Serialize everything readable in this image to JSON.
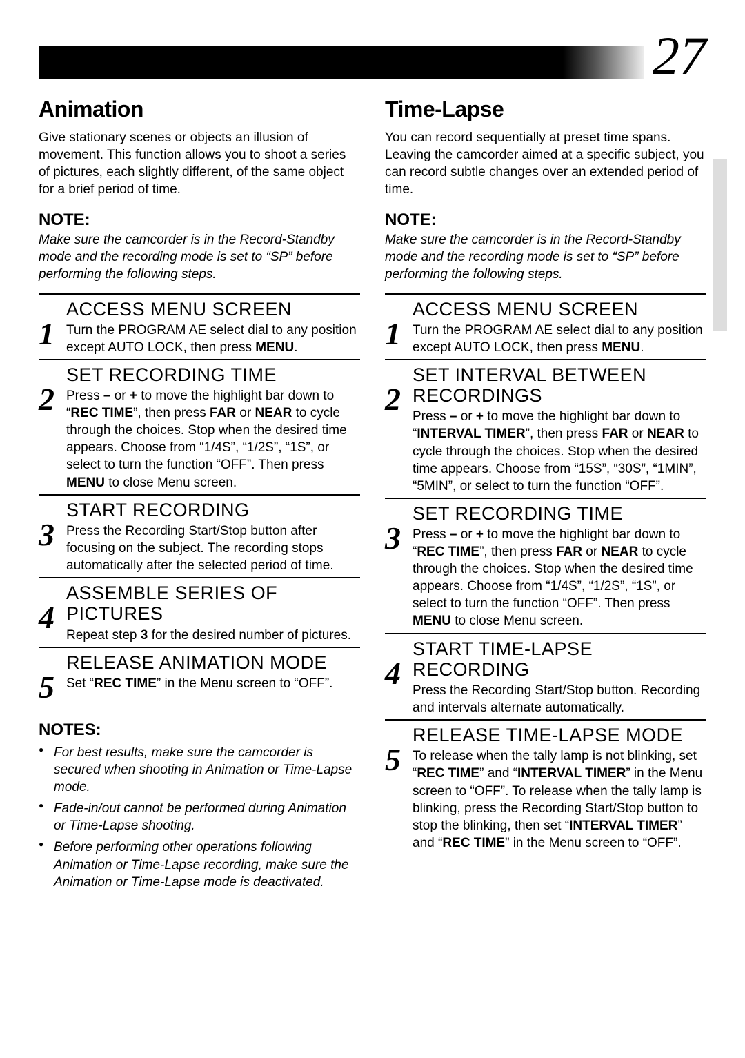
{
  "page_number": "27",
  "left": {
    "section_title": "Animation",
    "intro": "Give stationary scenes or objects an illusion of movement. This function allows you to shoot a series of pictures, each slightly different, of the same object for a brief period of time.",
    "note_label": "NOTE:",
    "note_text": "Make sure the camcorder is in the Record-Standby mode and the recording mode is set to “SP” before performing the following steps.",
    "steps": [
      {
        "n": "1",
        "title": "ACCESS MENU SCREEN",
        "html": "Turn the PROGRAM AE select dial to any position except AUTO LOCK, then press <b>MENU</b>."
      },
      {
        "n": "2",
        "title": "SET RECORDING TIME",
        "html": "Press <b>–</b> or <b>+</b> to move the highlight bar down to “<b>REC TIME</b>”,  then press <b>FAR</b> or <b>NEAR</b> to cycle through the choices. Stop when the desired time appears. Choose from “1/4S”, “1/2S”, “1S”, or select to turn the function “OFF”. Then press <b>MENU</b> to close Menu screen."
      },
      {
        "n": "3",
        "title": "START RECORDING",
        "html": "Press the Recording Start/Stop button after focusing on the subject. The recording stops automatically after the selected period of time."
      },
      {
        "n": "4",
        "title": "ASSEMBLE SERIES OF PICTURES",
        "html": "Repeat step <b>3</b> for the desired number of pictures."
      },
      {
        "n": "5",
        "title": "RELEASE ANIMATION MODE",
        "html": "Set “<b>REC TIME</b>” in the Menu screen to “OFF”."
      }
    ],
    "notes_label": "NOTES:",
    "notes": [
      "For best results, make sure the camcorder is secured when shooting in Animation or Time-Lapse mode.",
      "Fade-in/out cannot be performed during Animation or Time-Lapse shooting.",
      "Before performing other operations following Animation or Time-Lapse recording, make sure the Animation or Time-Lapse mode is deactivated."
    ]
  },
  "right": {
    "section_title": "Time-Lapse",
    "intro": "You can record sequentially at preset time spans. Leaving the camcorder aimed at a specific subject, you can record subtle changes over an extended period of time.",
    "note_label": "NOTE:",
    "note_text": "Make sure the camcorder is in the Record-Standby mode and the recording mode is set to “SP” before performing the following steps.",
    "steps": [
      {
        "n": "1",
        "title": "ACCESS MENU SCREEN",
        "html": "Turn the PROGRAM AE select dial to any position except AUTO LOCK, then press <b>MENU</b>."
      },
      {
        "n": "2",
        "title": "SET INTERVAL BETWEEN RECORDINGS",
        "html": "Press <b>–</b> or <b>+</b> to move the highlight bar down to “<b>INTERVAL TIMER</b>”, then press <b>FAR</b> or <b>NEAR</b> to cycle through the choices. Stop when the desired time appears. Choose from “15S”, “30S”, “1MIN”, “5MIN”, or select to turn the function “OFF”."
      },
      {
        "n": "3",
        "title": "SET RECORDING TIME",
        "html": "Press <b>–</b> or <b>+</b> to move the highlight bar down to “<b>REC TIME</b>”, then press <b>FAR</b> or <b>NEAR</b> to cycle through the choices. Stop when the desired time appears. Choose from “1/4S”, “1/2S”, “1S”, or select to turn the function “OFF”. Then press <b>MENU</b> to close Menu screen."
      },
      {
        "n": "4",
        "title": "START TIME-LAPSE RECORDING",
        "html": "Press the Recording Start/Stop button. Recording and intervals alternate automatically."
      },
      {
        "n": "5",
        "title": "RELEASE TIME-LAPSE MODE",
        "html": "To release when the tally lamp is not blinking, set “<b>REC TIME</b>” and “<b>INTERVAL TIMER</b>” in the Menu screen to “OFF”. To release when the tally lamp is blinking, press the Recording Start/Stop button to stop the blinking, then set “<b>INTERVAL TIMER</b>” and “<b>REC TIME</b>” in the Menu screen to “OFF”."
      }
    ]
  }
}
